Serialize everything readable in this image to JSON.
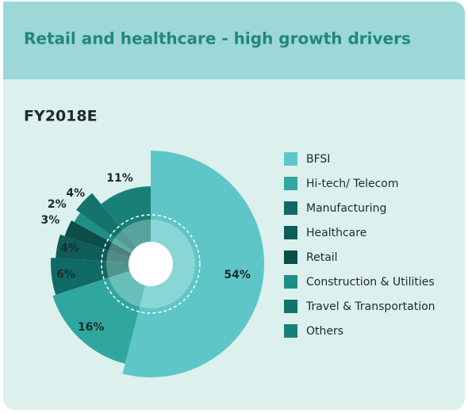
{
  "chart_data": {
    "type": "pie",
    "title": "Retail and healthcare - high growth drivers",
    "subtitle": "FY2018E",
    "categories": [
      "BFSI",
      "Hi-tech/ Telecom",
      "Manufacturing",
      "Healthcare",
      "Retail",
      "Construction & Utilities",
      "Travel & Transportation",
      "Others"
    ],
    "values": [
      54,
      16,
      6,
      4,
      3,
      2,
      4,
      11
    ],
    "value_labels": [
      "54%",
      "16%",
      "6%",
      "4%",
      "3%",
      "2%",
      "4%",
      "11%"
    ],
    "colors": [
      "#5ec6c6",
      "#2fa79e",
      "#0f6a65",
      "#0e5d59",
      "#0b4d49",
      "#1f8e87",
      "#13736d",
      "#198079"
    ],
    "legend": "right"
  }
}
